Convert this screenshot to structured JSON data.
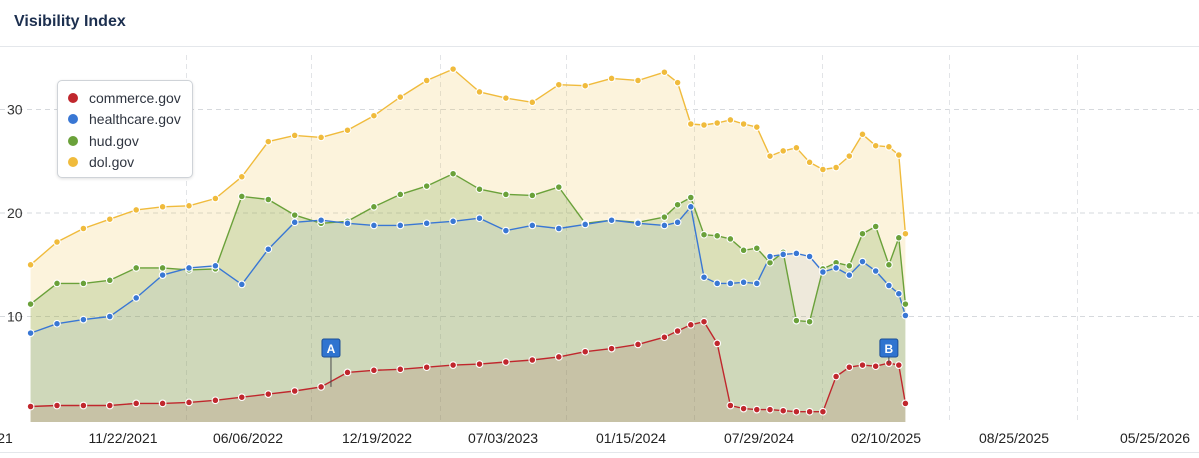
{
  "header": {
    "title": "Visibility Index"
  },
  "chart_data": {
    "type": "area",
    "title": "Visibility Index",
    "xlabel": "",
    "ylabel": "",
    "ylim": [
      0,
      35
    ],
    "y_ticks": [
      10,
      20,
      30
    ],
    "x_ticks": [
      "21",
      "11/22/2021",
      "06/06/2022",
      "12/19/2022",
      "07/03/2023",
      "01/15/2024",
      "07/29/2024",
      "02/10/2025",
      "08/25/2025",
      "05/25/2026"
    ],
    "grid": true,
    "legend_position": "top-left",
    "x": [
      "05/10/2021",
      "07/05/2021",
      "08/30/2021",
      "10/25/2021",
      "12/20/2021",
      "02/14/2022",
      "04/11/2022",
      "06/06/2022",
      "08/01/2022",
      "09/26/2022",
      "11/21/2022",
      "01/16/2023",
      "03/13/2023",
      "05/08/2023",
      "07/03/2023",
      "08/28/2023",
      "10/23/2023",
      "12/18/2023",
      "02/12/2024",
      "04/08/2024",
      "06/03/2024",
      "07/29/2024",
      "09/23/2024",
      "11/18/2024",
      "01/13/2025",
      "02/10/2025",
      "03/10/2025",
      "04/07/2025",
      "05/05/2025",
      "06/02/2025",
      "06/30/2025",
      "07/28/2025",
      "08/25/2025",
      "09/22/2025",
      "10/20/2025",
      "11/17/2025",
      "12/15/2025",
      "01/12/2026",
      "02/09/2026",
      "03/09/2026",
      "04/06/2026",
      "05/04/2026",
      "05/25/2026",
      "06/08/2026"
    ],
    "series": [
      {
        "name": "commerce.gov",
        "color": "#c0272d",
        "values": [
          1.3,
          1.4,
          1.4,
          1.4,
          1.6,
          1.6,
          1.7,
          1.9,
          2.2,
          2.5,
          2.8,
          3.2,
          4.6,
          4.8,
          4.9,
          5.1,
          5.3,
          5.4,
          5.6,
          5.8,
          6.1,
          6.6,
          6.9,
          7.3,
          8.0,
          8.6,
          9.2,
          9.5,
          7.4,
          1.4,
          1.1,
          1.0,
          1.0,
          0.9,
          0.8,
          0.8,
          0.8,
          4.2,
          5.1,
          5.3,
          5.2,
          5.5,
          5.3,
          1.6
        ]
      },
      {
        "name": "healthcare.gov",
        "color": "#3977d4",
        "values": [
          8.4,
          9.3,
          9.7,
          10.0,
          11.8,
          14.0,
          14.7,
          14.9,
          13.1,
          16.5,
          19.1,
          19.3,
          19.0,
          18.8,
          18.8,
          19.0,
          19.2,
          19.5,
          18.3,
          18.8,
          18.5,
          18.9,
          19.3,
          19.0,
          18.8,
          19.1,
          20.6,
          13.8,
          13.2,
          13.2,
          13.3,
          13.2,
          15.8,
          16.0,
          16.1,
          15.8,
          14.3,
          14.7,
          14.0,
          15.3,
          14.4,
          13.0,
          12.2,
          10.1
        ]
      },
      {
        "name": "hud.gov",
        "color": "#6aa13a",
        "values": [
          11.2,
          13.2,
          13.2,
          13.5,
          14.7,
          14.7,
          14.5,
          14.6,
          21.6,
          21.3,
          19.8,
          19.0,
          19.2,
          20.6,
          21.8,
          22.6,
          23.8,
          22.3,
          21.8,
          21.7,
          22.5,
          19.0,
          19.3,
          19.1,
          19.6,
          20.8,
          21.5,
          17.9,
          17.8,
          17.5,
          16.4,
          16.6,
          15.2,
          16.2,
          9.6,
          9.5,
          14.6,
          15.2,
          14.9,
          18.0,
          18.7,
          15.0,
          17.6,
          11.2
        ]
      },
      {
        "name": "dol.gov",
        "color": "#f0bb3c",
        "values": [
          15.0,
          17.2,
          18.5,
          19.4,
          20.3,
          20.6,
          20.7,
          21.4,
          23.5,
          26.9,
          27.5,
          27.3,
          28.0,
          29.4,
          31.2,
          32.8,
          33.9,
          31.7,
          31.1,
          30.7,
          32.4,
          32.3,
          33.0,
          32.8,
          33.6,
          32.6,
          28.6,
          28.5,
          28.7,
          29.0,
          28.6,
          28.3,
          25.5,
          26.0,
          26.3,
          24.9,
          24.2,
          24.4,
          25.5,
          27.6,
          26.5,
          26.4,
          25.6,
          18.0
        ]
      }
    ],
    "annotations": [
      {
        "label": "A",
        "x": "02/06/2023"
      },
      {
        "label": "B",
        "x": "05/04/2026"
      }
    ]
  }
}
